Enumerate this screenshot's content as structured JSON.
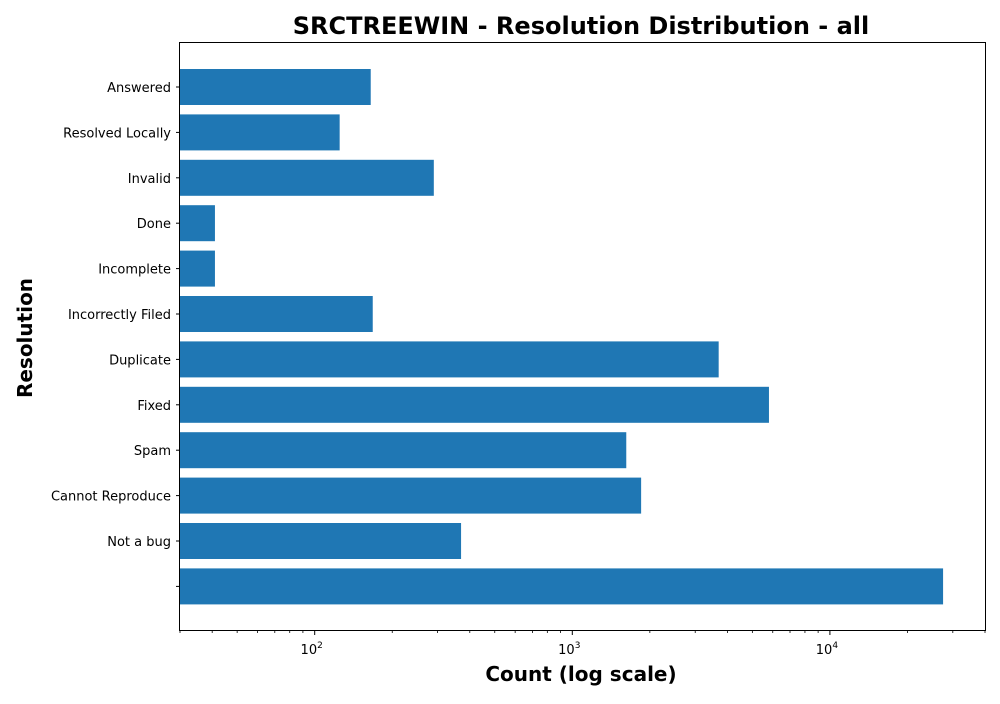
{
  "chart_data": {
    "type": "bar",
    "orientation": "horizontal",
    "title": "SRCTREEWIN - Resolution Distribution - all",
    "xlabel": "Count (log scale)",
    "ylabel": "Resolution",
    "x_scale": "log",
    "xlim": [
      30,
      40000
    ],
    "x_ticks": [
      {
        "base": "10",
        "exp": "2",
        "value": 100
      },
      {
        "base": "10",
        "exp": "3",
        "value": 1000
      },
      {
        "base": "10",
        "exp": "4",
        "value": 10000
      }
    ],
    "categories": [
      "Answered",
      "Resolved Locally",
      "Invalid",
      "Done",
      "Incomplete",
      "Incorrectly Filed",
      "Duplicate",
      "Fixed",
      "Spam",
      "Cannot Reproduce",
      "Not a bug",
      ""
    ],
    "values": [
      165,
      125,
      290,
      41,
      41,
      168,
      3700,
      5800,
      1620,
      1850,
      370,
      27500
    ],
    "bar_color": "#1f77b4",
    "grid": false,
    "legend": "none"
  }
}
